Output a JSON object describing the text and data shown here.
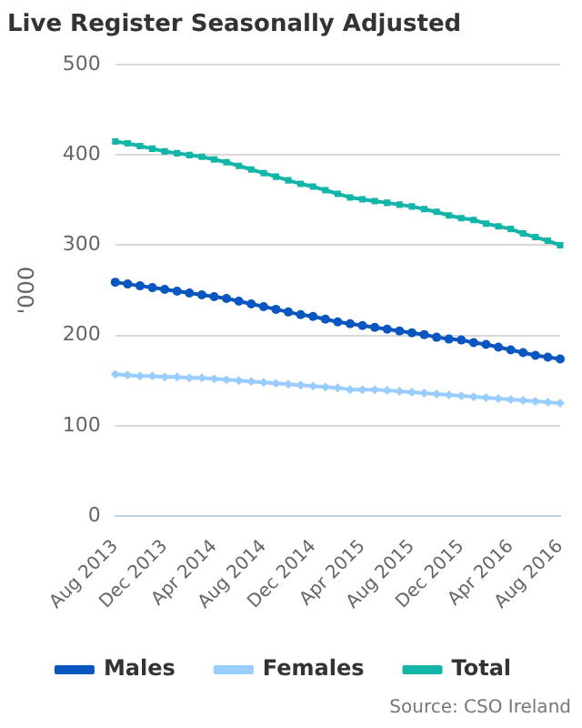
{
  "chart_data": {
    "type": "line",
    "title": "Live Register Seasonally Adjusted",
    "ylabel": "'000",
    "categories": [
      "Aug 2013",
      null,
      null,
      null,
      "Dec 2013",
      null,
      null,
      null,
      "Apr 2014",
      null,
      null,
      null,
      "Aug 2014",
      null,
      null,
      null,
      "Dec 2014",
      null,
      null,
      null,
      "Apr 2015",
      null,
      null,
      null,
      "Aug 2015",
      null,
      null,
      null,
      "Dec 2015",
      null,
      null,
      null,
      "Apr 2016",
      null,
      null,
      null,
      "Aug 2016"
    ],
    "series": [
      {
        "name": "Males",
        "color": "#0a56c0",
        "marker": "circle",
        "values": [
          259,
          257,
          255,
          253,
          251,
          249,
          247,
          245,
          243,
          241,
          238,
          235,
          232,
          229,
          226,
          223,
          221,
          218,
          215,
          213,
          211,
          209,
          207,
          205,
          203,
          201,
          198,
          196,
          195,
          192,
          190,
          187,
          184,
          181,
          178,
          176,
          174
        ]
      },
      {
        "name": "Females",
        "color": "#99ccff",
        "marker": "diamond",
        "values": [
          157,
          156,
          155,
          155,
          154,
          154,
          153,
          153,
          152,
          151,
          150,
          149,
          148,
          147,
          146,
          145,
          144,
          143,
          142,
          140,
          140,
          140,
          139,
          138,
          137,
          136,
          135,
          134,
          133,
          132,
          131,
          130,
          129,
          128,
          127,
          126,
          125
        ]
      },
      {
        "name": "Total",
        "color": "#12b5a8",
        "marker": "square",
        "values": [
          415,
          413,
          410,
          407,
          404,
          402,
          400,
          398,
          395,
          392,
          388,
          384,
          380,
          376,
          372,
          368,
          365,
          361,
          357,
          353,
          351,
          349,
          347,
          345,
          343,
          340,
          337,
          333,
          330,
          328,
          324,
          321,
          318,
          313,
          309,
          305,
          300
        ]
      }
    ],
    "ylim": [
      0,
      500
    ],
    "yticks": [
      0,
      100,
      200,
      300,
      400,
      500
    ],
    "grid": "y",
    "legend": "bottom",
    "line_style": "solid",
    "annotations": [
      "Source: CSO Ireland"
    ]
  }
}
